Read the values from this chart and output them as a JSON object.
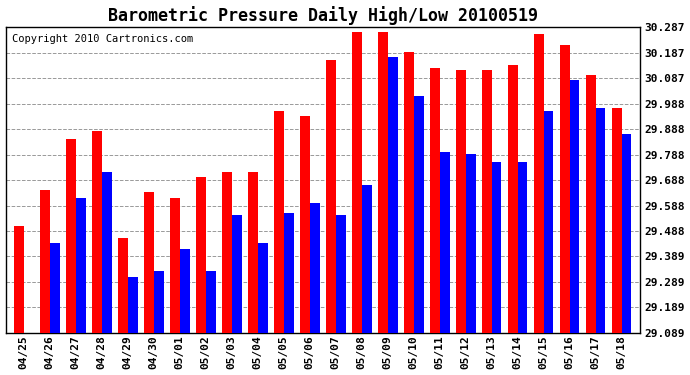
{
  "title": "Barometric Pressure Daily High/Low 20100519",
  "copyright": "Copyright 2010 Cartronics.com",
  "dates": [
    "04/25",
    "04/26",
    "04/27",
    "04/28",
    "04/29",
    "04/30",
    "05/01",
    "05/02",
    "05/03",
    "05/04",
    "05/05",
    "05/06",
    "05/07",
    "05/08",
    "05/09",
    "05/10",
    "05/11",
    "05/12",
    "05/13",
    "05/14",
    "05/15",
    "05/16",
    "05/17",
    "05/18"
  ],
  "highs": [
    29.51,
    29.65,
    29.85,
    29.88,
    29.46,
    29.64,
    29.62,
    29.7,
    29.72,
    29.72,
    29.96,
    29.94,
    30.16,
    30.27,
    30.27,
    30.19,
    30.13,
    30.12,
    30.12,
    30.14,
    30.26,
    30.22,
    30.1,
    29.97
  ],
  "lows": [
    29.09,
    29.44,
    29.62,
    29.72,
    29.31,
    29.33,
    29.42,
    29.33,
    29.55,
    29.44,
    29.56,
    29.6,
    29.55,
    29.67,
    30.17,
    30.02,
    29.8,
    29.79,
    29.76,
    29.76,
    29.96,
    30.08,
    29.97,
    29.87
  ],
  "ymin": 29.089,
  "ymax": 30.287,
  "yticks": [
    29.089,
    29.189,
    29.289,
    29.389,
    29.488,
    29.588,
    29.688,
    29.788,
    29.888,
    29.988,
    30.087,
    30.187,
    30.287
  ],
  "ytick_labels": [
    "29.089",
    "29.189",
    "29.289",
    "29.389",
    "29.488",
    "29.588",
    "29.688",
    "29.788",
    "29.888",
    "29.988",
    "30.087",
    "30.187",
    "30.287"
  ],
  "bar_width": 0.38,
  "high_color": "#ff0000",
  "low_color": "#0000ff",
  "bg_color": "#ffffff",
  "grid_color": "#999999",
  "title_fontsize": 12,
  "copyright_fontsize": 7.5,
  "tick_fontsize": 8
}
